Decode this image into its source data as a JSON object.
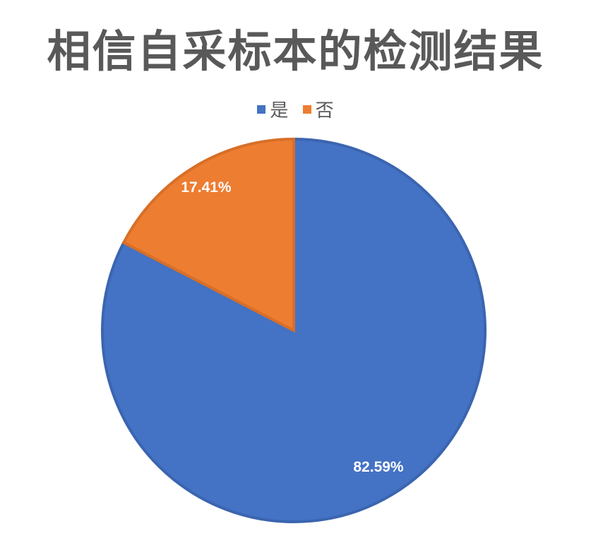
{
  "chart_data": {
    "type": "pie",
    "title": "相信自采标本的检测结果",
    "categories": [
      "是",
      "否"
    ],
    "values": [
      82.59,
      17.41
    ],
    "labels": [
      "82.59%",
      "17.41%"
    ],
    "colors": [
      "#4472C4",
      "#ED7D31"
    ],
    "legend": "top",
    "start_angle": "12 o'clock, clockwise"
  }
}
